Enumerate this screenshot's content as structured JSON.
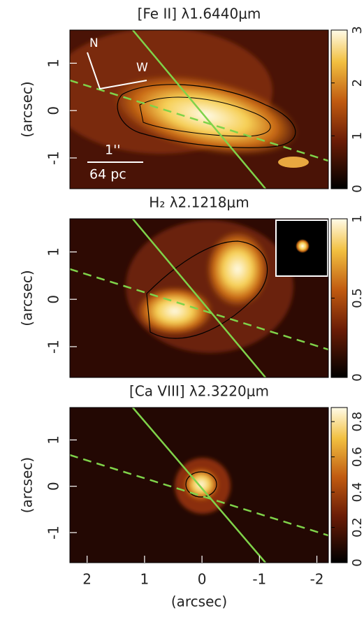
{
  "chart_data": [
    {
      "type": "image",
      "title": "[Fe II] λ1.6440μm",
      "ylabel": "(arcsec)",
      "xlim": [
        2.3,
        -2.2
      ],
      "ylim": [
        -1.65,
        1.7
      ],
      "yticks": [
        -1,
        0,
        1
      ],
      "clim": [
        0,
        3
      ],
      "cticks": [
        0,
        1,
        2,
        3
      ],
      "annotations": [
        "N",
        "W",
        "1''",
        "64 pc"
      ]
    },
    {
      "type": "image",
      "title": "H₂ λ2.1218μm",
      "ylabel": "(arcsec)",
      "xlim": [
        2.3,
        -2.2
      ],
      "ylim": [
        -1.65,
        1.7
      ],
      "yticks": [
        -1,
        0,
        1
      ],
      "clim": [
        0,
        1
      ],
      "cticks": [
        0,
        0.5,
        1
      ]
    },
    {
      "type": "image",
      "title": "[Ca VIII] λ2.3220μm",
      "ylabel": "(arcsec)",
      "xlabel": "(arcsec)",
      "xlim": [
        2.3,
        -2.2
      ],
      "ylim": [
        -1.65,
        1.7
      ],
      "yticks": [
        -1,
        0,
        1
      ],
      "xticks": [
        2,
        1,
        0,
        -1,
        -2
      ],
      "clim": [
        0,
        0.88
      ],
      "cticks": [
        0,
        0.2,
        0.4,
        0.6,
        0.8
      ]
    }
  ]
}
